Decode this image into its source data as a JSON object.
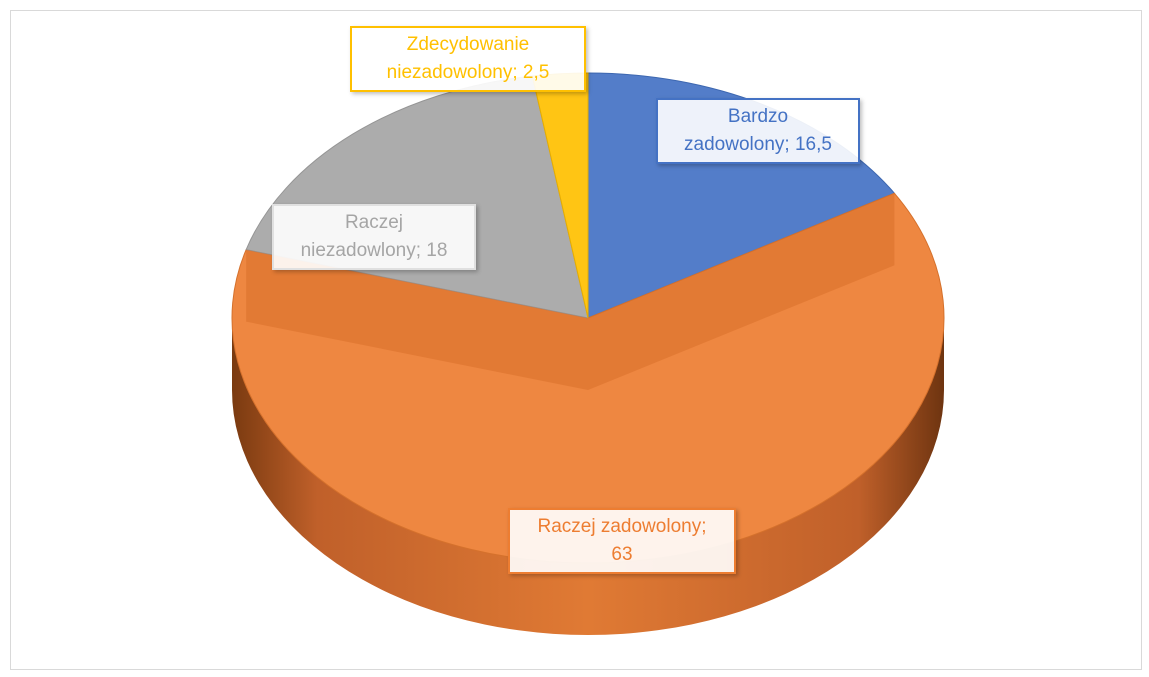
{
  "chart_data": {
    "type": "pie",
    "style": "3d",
    "title": "",
    "slices": [
      {
        "key": "bardzo",
        "value": 16.5,
        "label": "Bardzo zadowolony; 16,5",
        "lines": [
          "Bardzo",
          "zadowolony; 16,5"
        ],
        "color": "#4472C4"
      },
      {
        "key": "raczej_zad",
        "value": 63,
        "label": "Raczej zadowolony; 63",
        "lines": [
          "Raczej zadowolony;",
          "63"
        ],
        "color": "#ED7D31"
      },
      {
        "key": "raczej_niezad",
        "value": 18,
        "label": "Raczej niezadowlony; 18",
        "lines": [
          "Raczej",
          "niezadowlony; 18"
        ],
        "color": "#A5A5A5"
      },
      {
        "key": "zdecydowanie",
        "value": 2.5,
        "label": "Zdecydowanie niezadowolony; 2,5",
        "lines": [
          "Zdecydowanie",
          "niezadowolony; 2,5"
        ],
        "color": "#FFC000"
      }
    ]
  }
}
